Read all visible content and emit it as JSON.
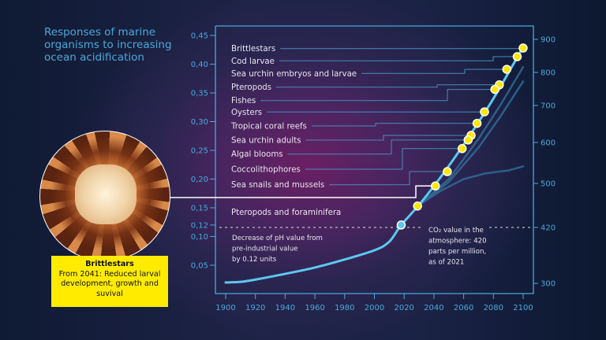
{
  "title": "Responses of marine organisms to increasing ocean acidification",
  "callout": {
    "heading": "Brittlestars",
    "text": "From 2041: Reduced larval development, growth and suvival"
  },
  "colors": {
    "curve": "#5cc8f0",
    "marker": "#ffe600",
    "background": "#1a2245",
    "axis": "#4aa8d8",
    "callout": "#ffeb00"
  },
  "chart_data": {
    "type": "line",
    "x_ticks": [
      "1900",
      "1920",
      "1940",
      "1960",
      "1980",
      "2000",
      "2020",
      "2040",
      "2060",
      "2080",
      "2100"
    ],
    "xlim": [
      1900,
      2100
    ],
    "y_left_ticks": [
      "0,45",
      "0,40",
      "0,35",
      "0,30",
      "0,25",
      "0,20",
      "0,15",
      "0,12",
      "0,10",
      "0,05"
    ],
    "ylim_left": [
      0,
      0.45
    ],
    "y_right_ticks": [
      "900",
      "800",
      "700",
      "600",
      "500",
      "420",
      "300"
    ],
    "grid": false,
    "series": [
      {
        "x": [
          1900,
          1910,
          1920,
          1940,
          1960,
          1980,
          2000,
          2010,
          2018,
          2030,
          2045,
          2060,
          2080,
          2100
        ],
        "y": [
          0.02,
          0.021,
          0.025,
          0.035,
          0.046,
          0.06,
          0.076,
          0.091,
          0.12,
          0.155,
          0.205,
          0.26,
          0.34,
          0.43
        ]
      }
    ],
    "scenario_lines": [
      {
        "x": [
          2030,
          2050,
          2070,
          2085,
          2100
        ],
        "y": [
          0.155,
          0.2,
          0.27,
          0.33,
          0.395
        ]
      },
      {
        "x": [
          2030,
          2050,
          2070,
          2085,
          2100
        ],
        "y": [
          0.155,
          0.195,
          0.255,
          0.31,
          0.37
        ]
      },
      {
        "x": [
          2030,
          2045,
          2060,
          2075,
          2090,
          2100
        ],
        "y": [
          0.155,
          0.18,
          0.2,
          0.21,
          0.215,
          0.222
        ]
      }
    ],
    "current_point": {
      "x": 2018,
      "y": 0.12
    },
    "reference": {
      "left_value": "0,12",
      "right_value": "420"
    },
    "responses": [
      {
        "label": "Brittlestars",
        "year": 2100,
        "value": 0.428
      },
      {
        "label": "Cod larvae",
        "year": 2096,
        "value": 0.413
      },
      {
        "label": "Sea urchin embryos and larvae",
        "year": 2089,
        "value": 0.391
      },
      {
        "label": "Pteropods",
        "year": 2084,
        "value": 0.364
      },
      {
        "label": "Fishes",
        "year": 2081,
        "value": 0.356
      },
      {
        "label": "Oysters",
        "year": 2074,
        "value": 0.317
      },
      {
        "label": "Tropical coral reefs",
        "year": 2069,
        "value": 0.297
      },
      {
        "label": "Sea urchin adults",
        "year": 2065,
        "value": 0.276
      },
      {
        "label": "Algal blooms",
        "year": 2063,
        "value": 0.268
      },
      {
        "label": "Coccolithophores",
        "year": 2059,
        "value": 0.253
      },
      {
        "label": "Sea snails and mussels",
        "year": 2049,
        "value": 0.213
      },
      {
        "label": "Pteropods and foraminifera",
        "year": 2029,
        "value": 0.153
      }
    ],
    "callout_point": {
      "label": "Brittlestars",
      "year": 2041,
      "value": 0.188
    },
    "annotations": {
      "ph_note": [
        "Decrease of pH value from",
        "pre-industrial value",
        "by 0.12 units"
      ],
      "co2_note": [
        "CO₂ value in the",
        "atmosphere: 420",
        "parts per million,",
        "as of 2021"
      ]
    }
  }
}
